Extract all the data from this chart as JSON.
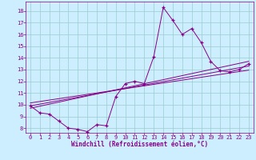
{
  "xlabel": "Windchill (Refroidissement éolien,°C)",
  "main_x": [
    0,
    1,
    2,
    3,
    4,
    5,
    6,
    7,
    8,
    9,
    10,
    11,
    12,
    13,
    14,
    15,
    16,
    17,
    18,
    19,
    20,
    21,
    22,
    23
  ],
  "main_y": [
    9.9,
    9.3,
    9.2,
    8.6,
    8.0,
    7.9,
    7.7,
    8.3,
    8.2,
    10.7,
    11.8,
    12.0,
    11.8,
    14.1,
    18.3,
    17.2,
    16.0,
    16.5,
    15.3,
    13.7,
    12.9,
    12.8,
    13.0,
    13.5
  ],
  "reg_lines": [
    {
      "x": [
        0,
        23
      ],
      "y": [
        9.7,
        13.7
      ]
    },
    {
      "x": [
        0,
        23
      ],
      "y": [
        9.9,
        13.3
      ]
    },
    {
      "x": [
        0,
        23
      ],
      "y": [
        10.15,
        12.95
      ]
    }
  ],
  "line_color": "#880088",
  "bg_color": "#cceeff",
  "grid_color": "#99cccc",
  "ylim": [
    7.6,
    18.8
  ],
  "xlim": [
    -0.5,
    23.5
  ],
  "yticks": [
    8,
    9,
    10,
    11,
    12,
    13,
    14,
    15,
    16,
    17,
    18
  ],
  "xticks": [
    0,
    1,
    2,
    3,
    4,
    5,
    6,
    7,
    8,
    9,
    10,
    11,
    12,
    13,
    14,
    15,
    16,
    17,
    18,
    19,
    20,
    21,
    22,
    23
  ],
  "tick_fontsize": 5.0,
  "xlabel_fontsize": 5.5
}
